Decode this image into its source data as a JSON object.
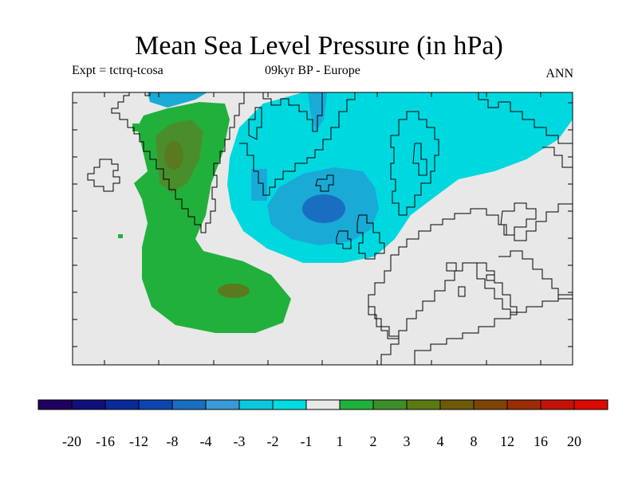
{
  "title": "Mean Sea Level Pressure (in hPa)",
  "experiment": "Expt = tctrq-tcosa",
  "period": "09kyr BP - Europe",
  "season": "ANN",
  "colorbar": {
    "colors": [
      "#200060",
      "#10107a",
      "#0a2a9a",
      "#0e44b0",
      "#1a6ec0",
      "#3a9ad8",
      "#0cc8dc",
      "#00dce2",
      "#e8e8e8",
      "#22b03c",
      "#3e8e28",
      "#5a7a14",
      "#6e5a0a",
      "#7e4406",
      "#9c2c04",
      "#c41208",
      "#dc0a00"
    ],
    "labels": [
      "-20",
      "-16",
      "-12",
      "-8",
      "-4",
      "-3",
      "-2",
      "-1",
      "1",
      "2",
      "3",
      "4",
      "8",
      "12",
      "16",
      "20"
    ]
  },
  "fills": {
    "background": "#e8e8e8",
    "cyan": "#00d8e0",
    "light_blue": "#1aaad6",
    "mid_blue": "#1a6ec0",
    "green": "#22b03c",
    "dark_green": "#4a8e2c",
    "olive": "#5a7a20"
  }
}
